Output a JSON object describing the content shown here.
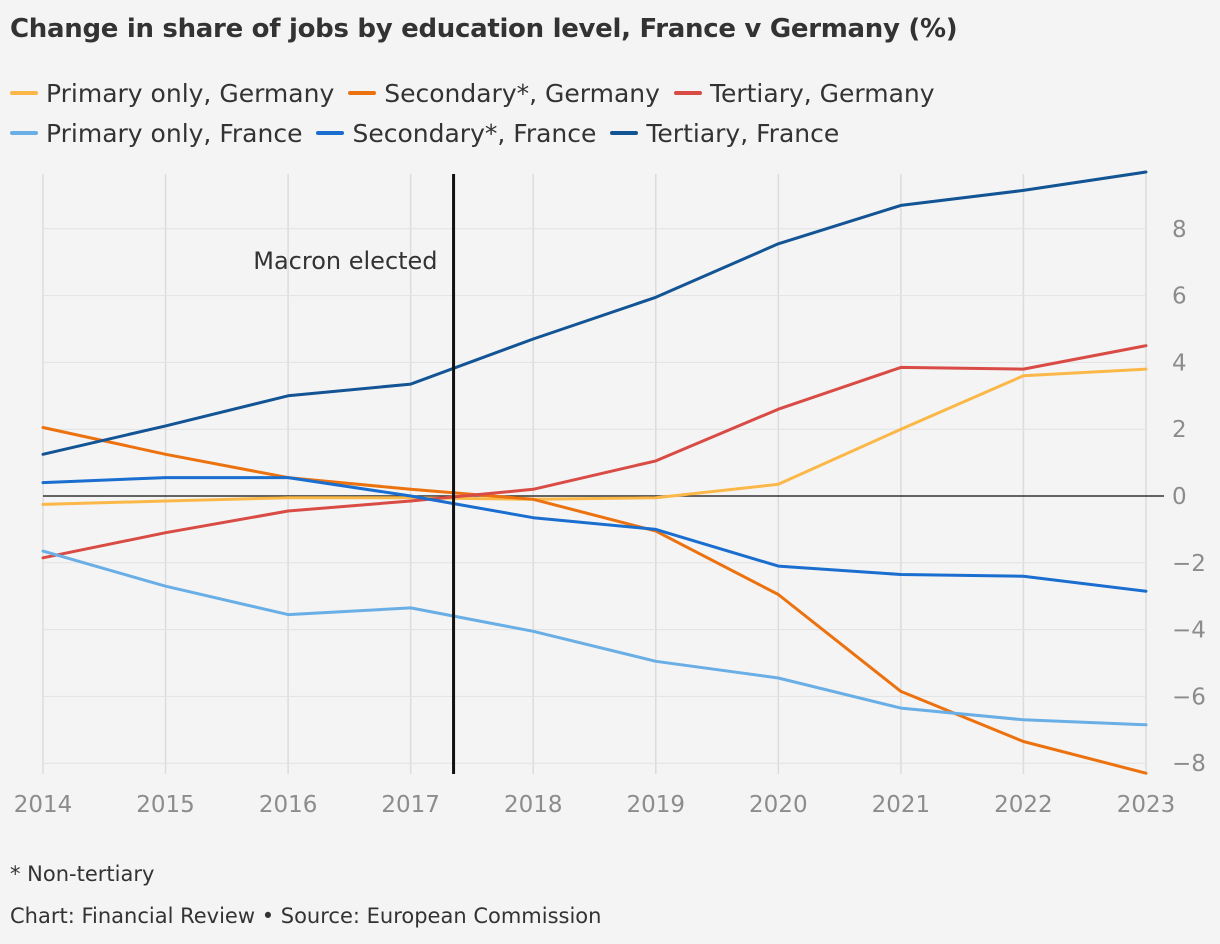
{
  "title": "Change in share of jobs by education level, France v Germany (%)",
  "footnote": "* Non-tertiary",
  "source": "Chart: Financial Review • Source: European Commission",
  "chart_data": {
    "type": "line",
    "title": "Change in share of jobs by education level, France v Germany (%)",
    "xlabel": "",
    "ylabel": "",
    "x": [
      2014,
      2015,
      2016,
      2017,
      2018,
      2019,
      2020,
      2021,
      2022,
      2023
    ],
    "ylim": [
      -8,
      10
    ],
    "yticks": [
      -8,
      -6,
      -4,
      -2,
      0,
      2,
      4,
      6,
      8
    ],
    "y_axis_side": "right",
    "grid": "vertical",
    "legend_position": "top",
    "annotation": {
      "text": "Macron elected",
      "x": 2017.35
    },
    "series": [
      {
        "name": "Primary only, Germany",
        "color": "#fbb848",
        "values": [
          -0.25,
          -0.15,
          -0.05,
          -0.05,
          -0.1,
          -0.05,
          0.35,
          2.0,
          3.6,
          3.8
        ]
      },
      {
        "name": "Secondary*, Germany",
        "color": "#ec720f",
        "values": [
          2.05,
          1.25,
          0.55,
          0.2,
          -0.1,
          -1.05,
          -2.95,
          -5.85,
          -7.35,
          -8.3
        ]
      },
      {
        "name": "Tertiary, Germany",
        "color": "#d94b45",
        "values": [
          -1.85,
          -1.1,
          -0.45,
          -0.15,
          0.2,
          1.05,
          2.6,
          3.85,
          3.8,
          4.5
        ]
      },
      {
        "name": "Primary only, France",
        "color": "#6aaee6",
        "values": [
          -1.65,
          -2.7,
          -3.55,
          -3.35,
          -4.05,
          -4.95,
          -5.45,
          -6.35,
          -6.7,
          -6.85
        ]
      },
      {
        "name": "Secondary*, France",
        "color": "#1a6ecf",
        "values": [
          0.4,
          0.55,
          0.55,
          0.0,
          -0.65,
          -1.0,
          -2.1,
          -2.35,
          -2.4,
          -2.85
        ]
      },
      {
        "name": "Tertiary, France",
        "color": "#135495",
        "values": [
          1.25,
          2.1,
          3.0,
          3.35,
          4.7,
          5.95,
          7.55,
          8.7,
          9.15,
          9.7
        ]
      }
    ]
  }
}
